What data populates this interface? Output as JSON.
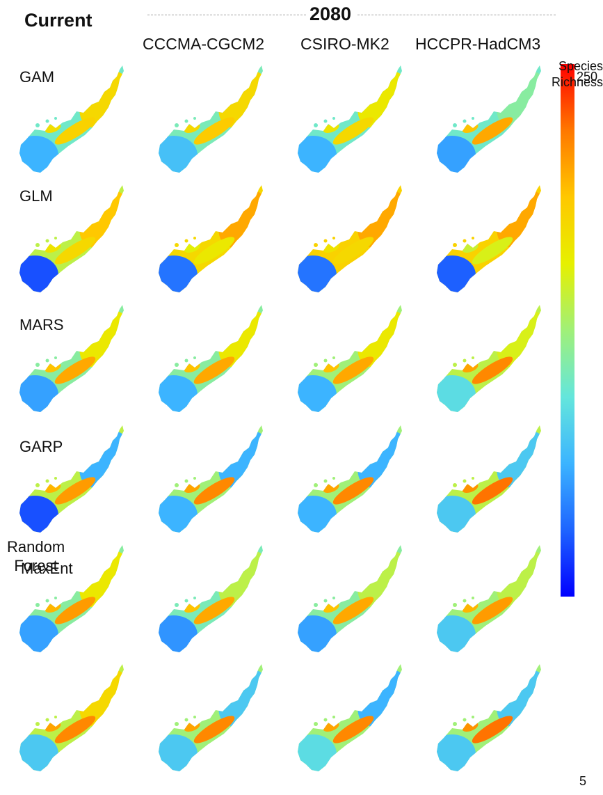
{
  "header": {
    "current": "Current",
    "future_year": "2080",
    "columns": [
      "CCCMA-CGCM2",
      "CSIRO-MK2",
      "HCCPR-HadCM3"
    ]
  },
  "rows": [
    {
      "label": "GAM",
      "panels": [
        {
          "hot": 0.72,
          "cool": 0.25,
          "mid": 0.4,
          "north": 0.7
        },
        {
          "hot": 0.74,
          "cool": 0.28,
          "mid": 0.42,
          "north": 0.7
        },
        {
          "hot": 0.7,
          "cool": 0.25,
          "mid": 0.4,
          "north": 0.65
        },
        {
          "hot": 0.8,
          "cool": 0.22,
          "mid": 0.4,
          "north": 0.45
        }
      ]
    },
    {
      "label": "GLM",
      "panels": [
        {
          "hot": 0.7,
          "cool": 0.1,
          "mid": 0.55,
          "north": 0.75
        },
        {
          "hot": 0.65,
          "cool": 0.15,
          "mid": 0.7,
          "north": 0.8
        },
        {
          "hot": 0.7,
          "cool": 0.15,
          "mid": 0.72,
          "north": 0.8
        },
        {
          "hot": 0.6,
          "cool": 0.12,
          "mid": 0.72,
          "north": 0.8
        }
      ]
    },
    {
      "label": "MARS",
      "panels": [
        {
          "hot": 0.8,
          "cool": 0.22,
          "mid": 0.45,
          "north": 0.65
        },
        {
          "hot": 0.8,
          "cool": 0.25,
          "mid": 0.45,
          "north": 0.65
        },
        {
          "hot": 0.8,
          "cool": 0.25,
          "mid": 0.5,
          "north": 0.65
        },
        {
          "hot": 0.85,
          "cool": 0.35,
          "mid": 0.55,
          "north": 0.6
        }
      ]
    },
    {
      "label": "GARP",
      "panels": [
        {
          "hot": 0.82,
          "cool": 0.1,
          "mid": 0.55,
          "north": 0.25
        },
        {
          "hot": 0.85,
          "cool": 0.25,
          "mid": 0.5,
          "north": 0.25
        },
        {
          "hot": 0.85,
          "cool": 0.25,
          "mid": 0.5,
          "north": 0.25
        },
        {
          "hot": 0.88,
          "cool": 0.3,
          "mid": 0.55,
          "north": 0.3
        }
      ]
    },
    {
      "label": "MaxEnt",
      "panels": [
        {
          "hot": 0.82,
          "cool": 0.22,
          "mid": 0.45,
          "north": 0.65
        },
        {
          "hot": 0.8,
          "cool": 0.2,
          "mid": 0.42,
          "north": 0.55
        },
        {
          "hot": 0.8,
          "cool": 0.22,
          "mid": 0.45,
          "north": 0.55
        },
        {
          "hot": 0.82,
          "cool": 0.3,
          "mid": 0.5,
          "north": 0.55
        }
      ]
    },
    {
      "label": "Random\nForest",
      "panels": [
        {
          "hot": 0.85,
          "cool": 0.3,
          "mid": 0.55,
          "north": 0.7
        },
        {
          "hot": 0.85,
          "cool": 0.3,
          "mid": 0.5,
          "north": 0.3
        },
        {
          "hot": 0.85,
          "cool": 0.35,
          "mid": 0.5,
          "north": 0.25
        },
        {
          "hot": 0.88,
          "cool": 0.3,
          "mid": 0.5,
          "north": 0.3
        }
      ]
    }
  ],
  "colorbar": {
    "title": "Species\nRichness",
    "max": "250",
    "min": "5",
    "colors": [
      "#0000ff",
      "#1e64ff",
      "#3cb4ff",
      "#64e6dc",
      "#a0f078",
      "#e6f000",
      "#ffc800",
      "#ff7800",
      "#ff0000"
    ]
  }
}
